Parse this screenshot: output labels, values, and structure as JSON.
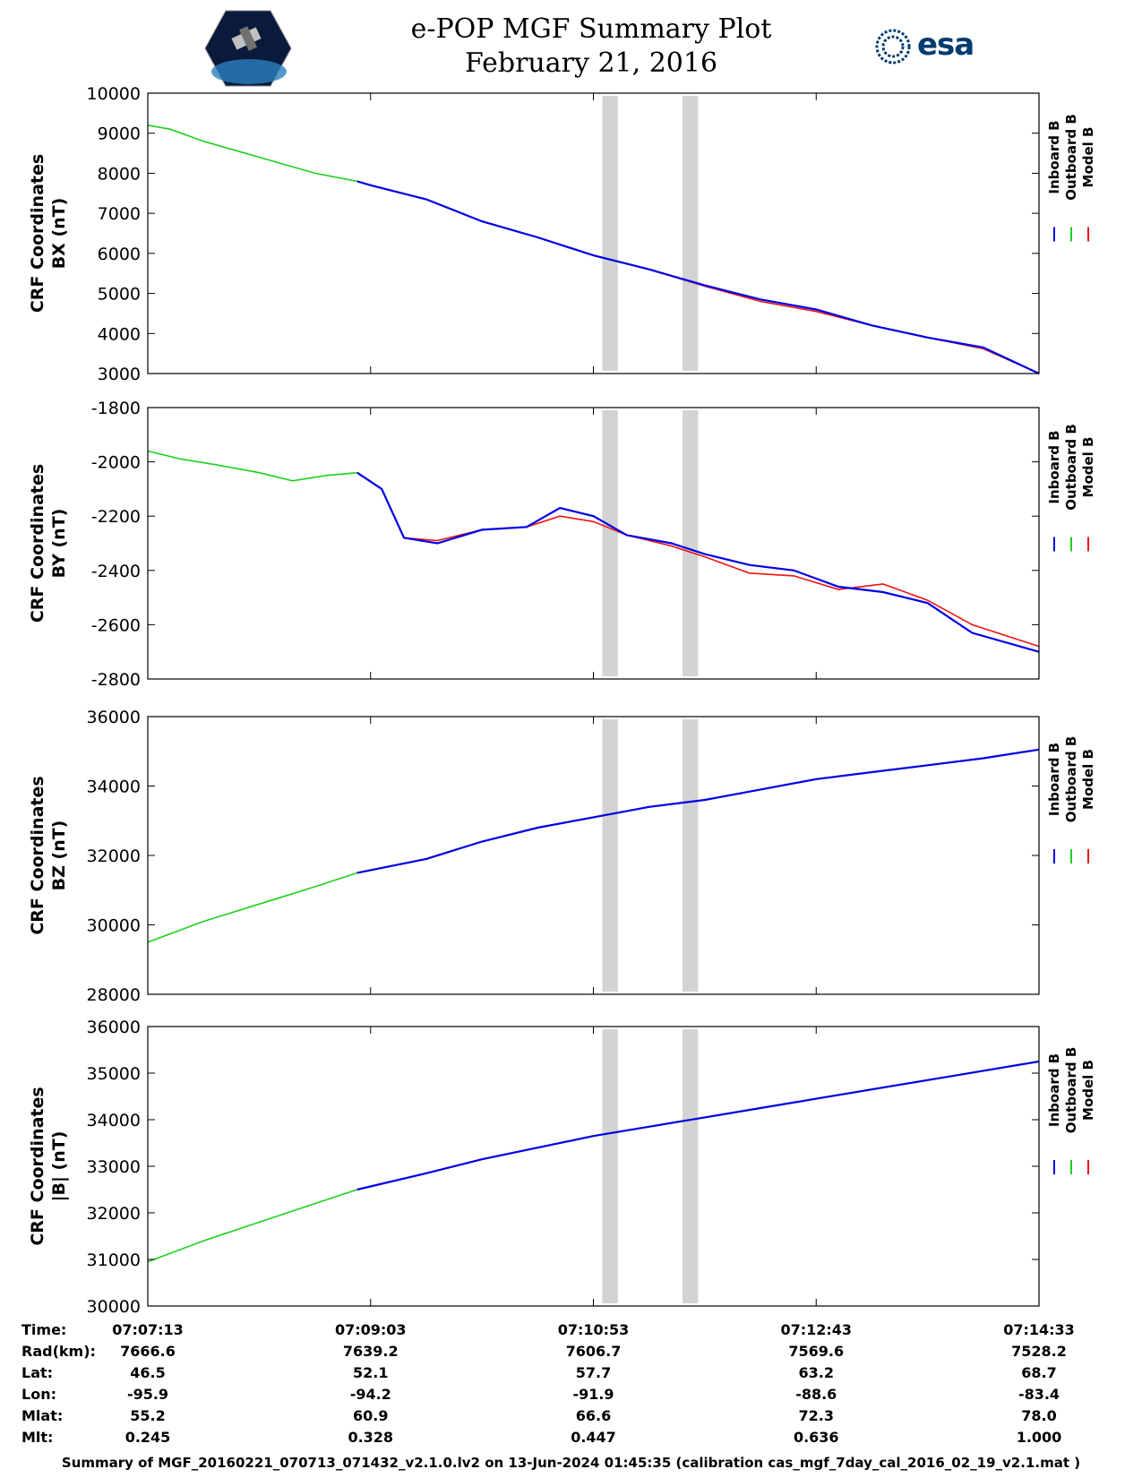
{
  "header": {
    "title": "e-POP MGF Summary Plot",
    "date": "February 21, 2016",
    "left_logo": "cassiope-satellite-logo",
    "right_logo": "esa"
  },
  "legend": [
    "Inboard B",
    "Outboard B",
    "Model B"
  ],
  "colors": {
    "inboard": "#0000e6",
    "outboard": "#1ecf1e",
    "model": "#ee1111",
    "gap": "#d3d3d3"
  },
  "chart_data": [
    {
      "type": "line",
      "ylabel": [
        "CRF Coordinates",
        "BX (nT)"
      ],
      "ylim": [
        3000,
        10000
      ],
      "yticks": [
        "10000",
        "9000",
        "8000",
        "7000",
        "6000",
        "5000",
        "4000",
        "3000"
      ],
      "series": [
        {
          "name": "Outboard B",
          "x": [
            0,
            0.2,
            0.5,
            1,
            1.5,
            1.88
          ],
          "values": [
            9200,
            9100,
            8800,
            8400,
            8000,
            7800
          ]
        },
        {
          "name": "Inboard B",
          "x": [
            1.88,
            2,
            2.5,
            3,
            3.5,
            4,
            4.5,
            5,
            5.5,
            6,
            6.5,
            7,
            7.5,
            8
          ],
          "values": [
            7800,
            7700,
            7350,
            6800,
            6400,
            5950,
            5600,
            5200,
            4850,
            4600,
            4200,
            3900,
            3650,
            3000
          ]
        },
        {
          "name": "Model B",
          "x": [
            1.88,
            2,
            2.5,
            3,
            3.5,
            4,
            4.5,
            5,
            5.5,
            6,
            6.5,
            7,
            7.5,
            8
          ],
          "values": [
            7800,
            7700,
            7350,
            6800,
            6400,
            5950,
            5600,
            5180,
            4800,
            4550,
            4200,
            3900,
            3620,
            3000
          ]
        }
      ]
    },
    {
      "type": "line",
      "ylabel": [
        "CRF Coordinates",
        "BY (nT)"
      ],
      "ylim": [
        -2800,
        -1800
      ],
      "yticks": [
        "-1800",
        "-2000",
        "-2200",
        "-2400",
        "-2600",
        "-2800"
      ],
      "series": [
        {
          "name": "Outboard B",
          "x": [
            0,
            0.3,
            0.6,
            1,
            1.3,
            1.6,
            1.88
          ],
          "values": [
            -1960,
            -1990,
            -2010,
            -2040,
            -2070,
            -2050,
            -2040
          ]
        },
        {
          "name": "Inboard B",
          "x": [
            1.88,
            2.1,
            2.3,
            2.6,
            3,
            3.4,
            3.7,
            4,
            4.3,
            4.7,
            5,
            5.4,
            5.8,
            6.2,
            6.6,
            7,
            7.4,
            8
          ],
          "values": [
            -2040,
            -2100,
            -2280,
            -2300,
            -2250,
            -2240,
            -2170,
            -2200,
            -2270,
            -2300,
            -2340,
            -2380,
            -2400,
            -2460,
            -2480,
            -2520,
            -2630,
            -2700
          ]
        },
        {
          "name": "Model B",
          "x": [
            1.88,
            2.1,
            2.3,
            2.6,
            3,
            3.4,
            3.7,
            4,
            4.3,
            4.7,
            5,
            5.4,
            5.8,
            6.2,
            6.6,
            7,
            7.4,
            8
          ],
          "values": [
            -2040,
            -2100,
            -2280,
            -2290,
            -2250,
            -2240,
            -2200,
            -2220,
            -2270,
            -2310,
            -2350,
            -2410,
            -2420,
            -2470,
            -2450,
            -2510,
            -2600,
            -2680
          ]
        }
      ]
    },
    {
      "type": "line",
      "ylabel": [
        "CRF Coordinates",
        "BZ (nT)"
      ],
      "ylim": [
        28000,
        36000
      ],
      "yticks": [
        "36000",
        "34000",
        "32000",
        "30000",
        "28000"
      ],
      "series": [
        {
          "name": "Outboard B",
          "x": [
            0,
            0.5,
            1,
            1.5,
            1.88
          ],
          "values": [
            29500,
            30100,
            30600,
            31100,
            31500
          ]
        },
        {
          "name": "Inboard B",
          "x": [
            1.88,
            2.5,
            3,
            3.5,
            4,
            4.5,
            5,
            5.5,
            6,
            6.5,
            7,
            7.5,
            8
          ],
          "values": [
            31500,
            31900,
            32400,
            32800,
            33100,
            33400,
            33600,
            33900,
            34200,
            34400,
            34600,
            34800,
            35050
          ]
        },
        {
          "name": "Model B",
          "x": [
            1.88,
            2.5,
            3,
            3.5,
            4,
            4.5,
            5,
            5.5,
            6,
            6.5,
            7,
            7.5,
            8
          ],
          "values": [
            31500,
            31900,
            32400,
            32800,
            33100,
            33400,
            33600,
            33900,
            34200,
            34400,
            34600,
            34800,
            35050
          ]
        }
      ]
    },
    {
      "type": "line",
      "ylabel": [
        "CRF Coordinates",
        "|B| (nT)"
      ],
      "ylim": [
        30000,
        36000
      ],
      "yticks": [
        "36000",
        "35000",
        "34000",
        "33000",
        "32000",
        "31000",
        "30000"
      ],
      "series": [
        {
          "name": "Outboard B",
          "x": [
            0,
            0.5,
            1,
            1.5,
            1.88
          ],
          "values": [
            30950,
            31400,
            31800,
            32200,
            32500
          ]
        },
        {
          "name": "Inboard B",
          "x": [
            1.88,
            2.5,
            3,
            3.5,
            4,
            4.5,
            5,
            5.5,
            6,
            6.5,
            7,
            7.5,
            8
          ],
          "values": [
            32500,
            32850,
            33150,
            33400,
            33650,
            33850,
            34050,
            34250,
            34450,
            34650,
            34850,
            35050,
            35250
          ]
        },
        {
          "name": "Model B",
          "x": [
            1.88,
            2.5,
            3,
            3.5,
            4,
            4.5,
            5,
            5.5,
            6,
            6.5,
            7,
            7.5,
            8
          ],
          "values": [
            32500,
            32850,
            33150,
            33400,
            33650,
            33850,
            34050,
            34250,
            34450,
            34650,
            34850,
            35050,
            35250
          ]
        }
      ]
    }
  ],
  "time_axis": {
    "range": [
      0,
      8
    ],
    "ticks": [
      0,
      2,
      4,
      6,
      8
    ],
    "gaps": [
      [
        4.08,
        4.22
      ],
      [
        4.8,
        4.94
      ]
    ],
    "rows": [
      {
        "label": "Time:",
        "values": [
          "07:07:13",
          "07:09:03",
          "07:10:53",
          "07:12:43",
          "07:14:33"
        ]
      },
      {
        "label": "Rad(km):",
        "values": [
          "7666.6",
          "7639.2",
          "7606.7",
          "7569.6",
          "7528.2"
        ]
      },
      {
        "label": "Lat:",
        "values": [
          "46.5",
          "52.1",
          "57.7",
          "63.2",
          "68.7"
        ]
      },
      {
        "label": "Lon:",
        "values": [
          "-95.9",
          "-94.2",
          "-91.9",
          "-88.6",
          "-83.4"
        ]
      },
      {
        "label": "Mlat:",
        "values": [
          "55.2",
          "60.9",
          "66.6",
          "72.3",
          "78.0"
        ]
      },
      {
        "label": "Mlt:",
        "values": [
          "0.245",
          "0.328",
          "0.447",
          "0.636",
          "1.000"
        ]
      }
    ]
  },
  "footer": "Summary of MGF_20160221_070713_071432_v2.1.0.lv2 on 13-Jun-2024 01:45:35 (calibration cas_mgf_7day_cal_2016_02_19_v2.1.mat )"
}
